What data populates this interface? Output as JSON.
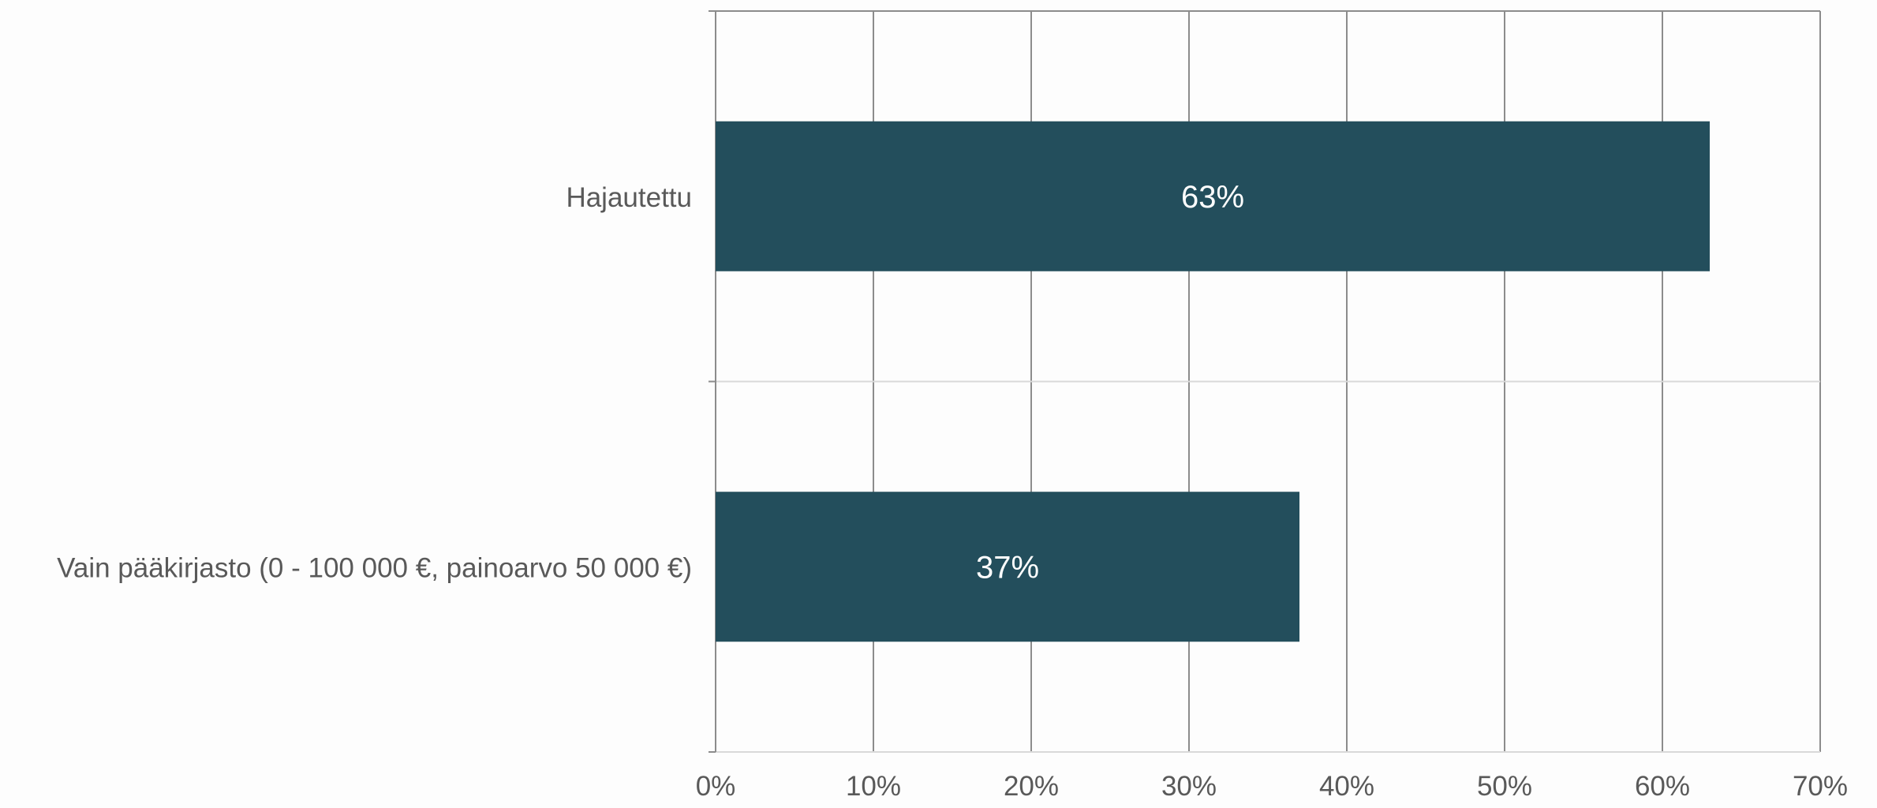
{
  "chart_data": {
    "type": "bar",
    "orientation": "horizontal",
    "title": "",
    "xlabel": "",
    "ylabel": "",
    "categories": [
      "Hajautettu",
      "Vain pääkirjasto (0 - 100 000 €, painoarvo 50 000 €)"
    ],
    "values": [
      63,
      37
    ],
    "data_labels": [
      "63%",
      "37%"
    ],
    "xlim": [
      0,
      70
    ],
    "x_ticks": [
      0,
      10,
      20,
      30,
      40,
      50,
      60,
      70
    ],
    "x_tick_labels": [
      "0%",
      "10%",
      "20%",
      "30%",
      "40%",
      "50%",
      "60%",
      "70%"
    ],
    "grid": "vertical",
    "legend": "none",
    "colors": {
      "bar": "#234e5c",
      "bar_label": "#ffffff",
      "gridline": "#8c8c8c",
      "category_divider": "#d9d9d9",
      "axis_text": "#595959",
      "background": "#fdfdfd"
    }
  }
}
